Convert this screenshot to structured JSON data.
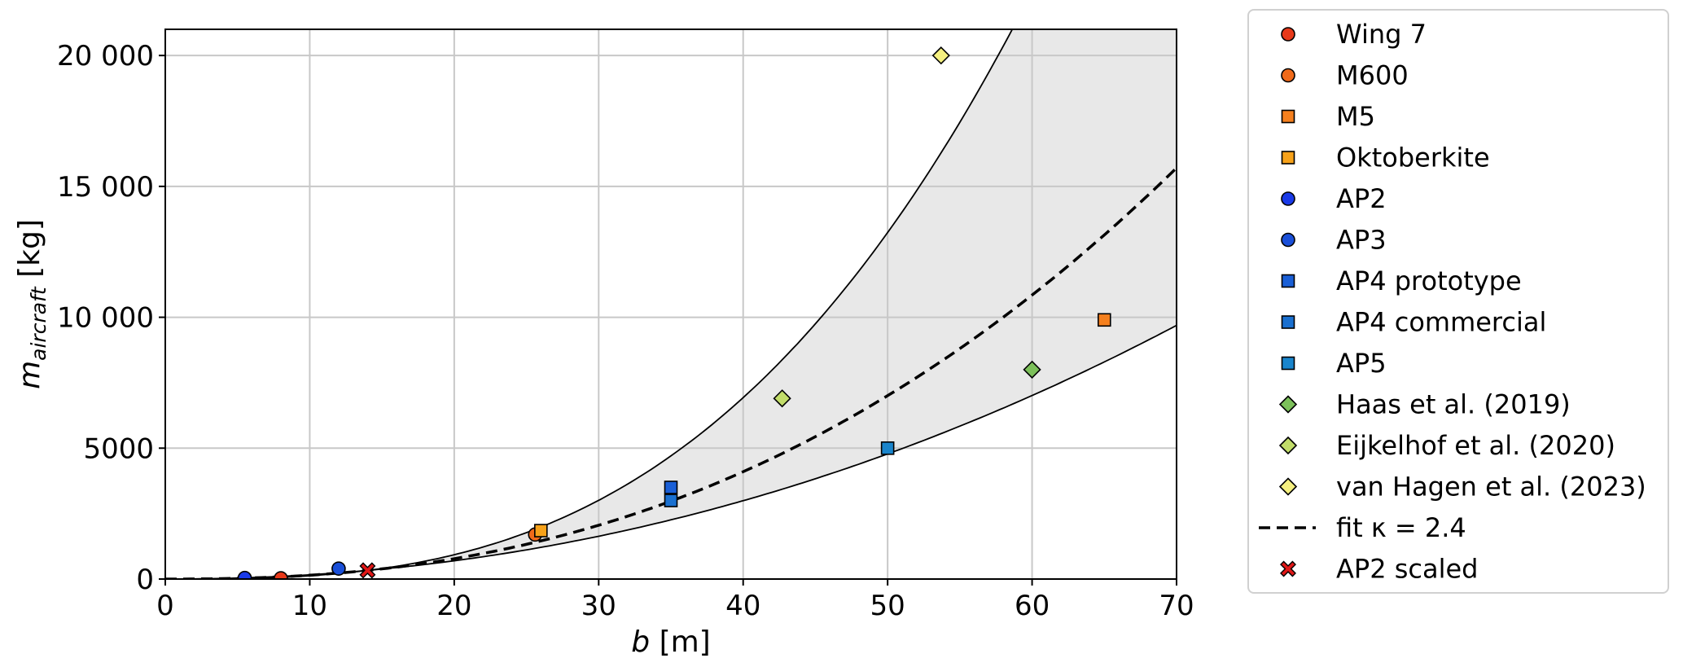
{
  "chart_data": {
    "type": "scatter",
    "xlabel": {
      "var": "b",
      "unit": " [m]"
    },
    "ylabel": {
      "var": "m",
      "sub": "aircraft",
      "unit": " [kg]"
    },
    "xlim": [
      0,
      70
    ],
    "ylim": [
      0,
      21000
    ],
    "xticks": [
      0,
      10,
      20,
      30,
      40,
      50,
      60,
      70
    ],
    "yticks": [
      0,
      5000,
      10000,
      15000,
      20000
    ],
    "ytick_labels": [
      "0",
      "5000",
      "10 000",
      "15 000",
      "20 000"
    ],
    "grid": true,
    "legend_position": "outside-right",
    "series": [
      {
        "name": "Wing 7",
        "marker": "circle",
        "color": "#e8391a",
        "points": [
          [
            8,
            30
          ]
        ]
      },
      {
        "name": "M600",
        "marker": "circle",
        "color": "#f06a1a",
        "points": [
          [
            25.6,
            1700
          ]
        ]
      },
      {
        "name": "M5",
        "marker": "square",
        "color": "#f5801e",
        "points": [
          [
            65,
            9900
          ]
        ]
      },
      {
        "name": "Oktoberkite",
        "marker": "square",
        "color": "#f7a21a",
        "points": [
          [
            26,
            1850
          ]
        ]
      },
      {
        "name": "AP2",
        "marker": "circle",
        "color": "#1a3ae8",
        "points": [
          [
            5.5,
            40
          ]
        ]
      },
      {
        "name": "AP3",
        "marker": "circle",
        "color": "#1a4fd8",
        "points": [
          [
            12,
            400
          ]
        ]
      },
      {
        "name": "AP4 prototype",
        "marker": "square",
        "color": "#1a5fd6",
        "points": [
          [
            35,
            3500
          ]
        ]
      },
      {
        "name": "AP4 commercial",
        "marker": "square",
        "color": "#1a70d0",
        "points": [
          [
            35,
            3000
          ]
        ]
      },
      {
        "name": "AP5",
        "marker": "square",
        "color": "#1a85cc",
        "points": [
          [
            50,
            5000
          ]
        ]
      },
      {
        "name": "Haas et al. (2019)",
        "marker": "diamond",
        "color": "#7cc05a",
        "points": [
          [
            60,
            8000
          ]
        ]
      },
      {
        "name": "Eijkelhof et al. (2020)",
        "marker": "diamond",
        "color": "#c2dd6a",
        "points": [
          [
            42.7,
            6900
          ]
        ]
      },
      {
        "name": "van Hagen et al. (2023)",
        "marker": "diamond",
        "color": "#f5f080",
        "points": [
          [
            53.7,
            20000
          ]
        ]
      },
      {
        "name": "fit κ = 2.4",
        "marker": "dashed-line",
        "color": "#000000",
        "fit": {
          "kappa": 2.4,
          "ref_b": 14,
          "ref_m": 330
        }
      },
      {
        "name": "AP2 scaled",
        "marker": "x",
        "color": "#e01818",
        "points": [
          [
            14,
            330
          ]
        ]
      }
    ],
    "band": {
      "fill": "#e8e8e8",
      "upper": {
        "kappa": 2.9,
        "ref_b": 14,
        "ref_m": 330
      },
      "lower": {
        "kappa": 2.1,
        "ref_b": 14,
        "ref_m": 330
      }
    }
  }
}
